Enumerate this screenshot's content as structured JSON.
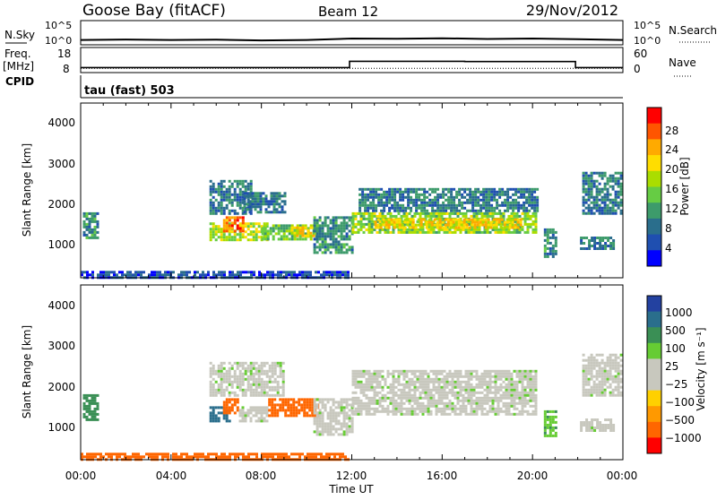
{
  "header": {
    "site": "Goose Bay (fitACF)",
    "beam": "Beam 12",
    "date": "29/Nov/2012"
  },
  "noise_panel": {
    "left_label": "N.Sky",
    "right_label": "N.Search",
    "left_ticks": [
      "10^5",
      "10^0"
    ],
    "right_ticks": [
      "10^5",
      "10^0"
    ]
  },
  "freq_panel": {
    "left_label_1": "Freq.",
    "left_label_2": "[MHz]",
    "cpid_label": "CPID",
    "right_label": "Nave",
    "left_ticks": [
      "18",
      "8"
    ],
    "right_ticks": [
      "60",
      "0"
    ]
  },
  "cpid_panel": {
    "text": "tau (fast) 503"
  },
  "power_panel": {
    "ylabel": "Slant Range [km]",
    "yticks": [
      "4000",
      "3000",
      "2000",
      "1000"
    ],
    "colorbar_label": "Power [dB]",
    "colorbar_ticks": [
      "28",
      "24",
      "20",
      "16",
      "12",
      "8",
      "4"
    ],
    "colorbar_colors": [
      "#ff0000",
      "#ff5500",
      "#ffaa00",
      "#ffdd00",
      "#aadd00",
      "#66cc44",
      "#3d9b6b",
      "#2a6e8c",
      "#1f4fb0",
      "#0000ff"
    ]
  },
  "velocity_panel": {
    "ylabel": "Slant Range [km]",
    "yticks": [
      "4000",
      "3000",
      "2000",
      "1000"
    ],
    "colorbar_label": "Velocity [m s⁻¹]",
    "colorbar_ticks": [
      "1000",
      "500",
      "100",
      "25",
      "−25",
      "−100",
      "−500",
      "−1000"
    ],
    "colorbar_colors": [
      "#2341a0",
      "#2a6e8c",
      "#3a8f55",
      "#66cc33",
      "#c8c8be",
      "#c8c8be",
      "#ffd000",
      "#ff9900",
      "#ff6600",
      "#ff0000"
    ]
  },
  "time_axis": {
    "ticks": [
      "00:00",
      "04:00",
      "08:00",
      "12:00",
      "16:00",
      "20:00",
      "00:00"
    ],
    "label": "Time UT"
  },
  "chart_data": [
    {
      "type": "line",
      "x_unit": "hours UT",
      "xlim": [
        0,
        24
      ],
      "series": [
        {
          "x": [
            0,
            2,
            4,
            6,
            8,
            10,
            12,
            14,
            16,
            18,
            20,
            22,
            24
          ],
          "values": [
            1.0,
            1.1,
            1.0,
            1.05,
            0.9,
            1.0,
            1.3,
            1.25,
            1.35,
            1.2,
            1.3,
            1.15,
            1.0
          ]
        }
      ],
      "ylim_log10": [
        0,
        5
      ]
    },
    {
      "type": "line",
      "x_unit": "hours UT",
      "xlim": [
        0,
        24
      ],
      "ylim": [
        8,
        18
      ],
      "series": [
        {
          "x": [
            0,
            11.9,
            11.9,
            17.0,
            17.0,
            21.9,
            21.9,
            24
          ],
          "values": [
            10,
            10,
            12.5,
            12.5,
            12.4,
            12.4,
            10,
            10
          ]
        }
      ],
      "nave_series": [
        {
          "x": [
            0,
            24
          ],
          "values": [
            10,
            10
          ]
        }
      ],
      "nave_ylim": [
        0,
        60
      ]
    },
    {
      "type": "heatmap",
      "quantity": "power",
      "xlim": [
        0,
        24
      ],
      "ylim": [
        180,
        4500
      ],
      "zlim": [
        0,
        30
      ],
      "z_unit": "dB",
      "regions": [
        {
          "t0": 0.1,
          "t1": 0.8,
          "r0": 1200,
          "r1": 1800,
          "v": 9
        },
        {
          "t0": 5.7,
          "t1": 8.3,
          "r0": 1150,
          "r1": 1550,
          "v": 16
        },
        {
          "t0": 6.3,
          "t1": 7.2,
          "r0": 1350,
          "r1": 1700,
          "v": 24
        },
        {
          "t0": 8.0,
          "t1": 10.5,
          "r0": 1150,
          "r1": 1500,
          "v": 14
        },
        {
          "t0": 9.3,
          "t1": 10.3,
          "r0": 1250,
          "r1": 1450,
          "v": 20
        },
        {
          "t0": 5.7,
          "t1": 7.5,
          "r0": 1800,
          "r1": 2600,
          "v": 8
        },
        {
          "t0": 7.2,
          "t1": 9.0,
          "r0": 1800,
          "r1": 2300,
          "v": 8
        },
        {
          "t0": 10.3,
          "t1": 12.0,
          "r0": 800,
          "r1": 1700,
          "v": 9
        },
        {
          "t0": 12.0,
          "t1": 20.2,
          "r0": 1300,
          "r1": 1800,
          "v": 15
        },
        {
          "t0": 13.0,
          "t1": 19.5,
          "r0": 1400,
          "r1": 1650,
          "v": 20
        },
        {
          "t0": 12.3,
          "t1": 20.2,
          "r0": 1850,
          "r1": 2400,
          "v": 8
        },
        {
          "t0": 20.5,
          "t1": 21.0,
          "r0": 700,
          "r1": 1400,
          "v": 9
        },
        {
          "t0": 22.1,
          "t1": 23.6,
          "r0": 900,
          "r1": 1200,
          "v": 8
        },
        {
          "t0": 22.2,
          "t1": 23.9,
          "r0": 1800,
          "r1": 2800,
          "v": 8
        },
        {
          "t0": 0.0,
          "t1": 11.8,
          "r0": 180,
          "r1": 350,
          "v": 5
        }
      ]
    },
    {
      "type": "heatmap",
      "quantity": "velocity",
      "xlim": [
        0,
        24
      ],
      "ylim": [
        180,
        4500
      ],
      "zlim": [
        -1000,
        1000
      ],
      "z_unit": "m s⁻¹",
      "regions": [
        {
          "t0": 0.1,
          "t1": 0.8,
          "r0": 1200,
          "r1": 1800,
          "v": 200
        },
        {
          "t0": 5.7,
          "t1": 6.6,
          "r0": 1150,
          "r1": 1500,
          "v": 300
        },
        {
          "t0": 6.3,
          "t1": 7.0,
          "r0": 1350,
          "r1": 1700,
          "v": -300
        },
        {
          "t0": 7.0,
          "t1": 8.3,
          "r0": 1150,
          "r1": 1500,
          "v": 0
        },
        {
          "t0": 8.3,
          "t1": 10.5,
          "r0": 1250,
          "r1": 1700,
          "v": -400
        },
        {
          "t0": 5.7,
          "t1": 9.0,
          "r0": 1800,
          "r1": 2600,
          "v": 0
        },
        {
          "t0": 10.3,
          "t1": 12.0,
          "r0": 800,
          "r1": 1700,
          "v": 0
        },
        {
          "t0": 12.0,
          "t1": 20.2,
          "r0": 1300,
          "r1": 2400,
          "v": 0
        },
        {
          "t0": 20.5,
          "t1": 21.0,
          "r0": 800,
          "r1": 1400,
          "v": 80
        },
        {
          "t0": 22.1,
          "t1": 23.6,
          "r0": 900,
          "r1": 1200,
          "v": 0
        },
        {
          "t0": 22.2,
          "t1": 23.9,
          "r0": 1800,
          "r1": 2800,
          "v": 0
        },
        {
          "t0": 0.0,
          "t1": 11.8,
          "r0": 180,
          "r1": 350,
          "v": -300
        }
      ]
    }
  ]
}
